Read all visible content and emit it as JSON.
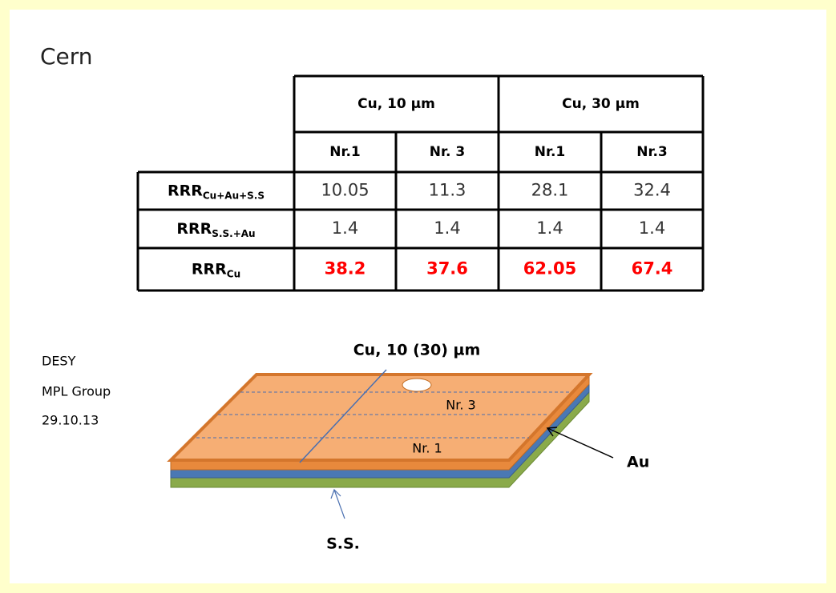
{
  "title": "Cern",
  "table": {
    "groups": [
      "Cu, 10 µm",
      "Cu, 30 µm"
    ],
    "columns": [
      "Nr.1",
      "Nr. 3",
      "Nr.1",
      "Nr.3"
    ],
    "rows": [
      {
        "label": {
          "main": "RRR",
          "sub": "Cu+Au+S.S"
        },
        "values": [
          10.05,
          11.3,
          28.1,
          32.4
        ]
      },
      {
        "label": {
          "main": "RRR",
          "sub": "S.S.+Au"
        },
        "values": [
          1.4,
          1.4,
          1.4,
          1.4
        ]
      },
      {
        "label": {
          "main": "RRR",
          "sub": "Cu"
        },
        "values": [
          38.2,
          37.6,
          62.05,
          67.4
        ]
      }
    ]
  },
  "side_note": [
    "DESY",
    "MPL Group",
    "29.10.13"
  ],
  "diagram": {
    "top_label": "Cu, 10 (30) µm",
    "strip_labels": [
      "Nr. 3",
      "Nr. 1"
    ],
    "au_label": "Au",
    "ss_label": "S.S."
  }
}
